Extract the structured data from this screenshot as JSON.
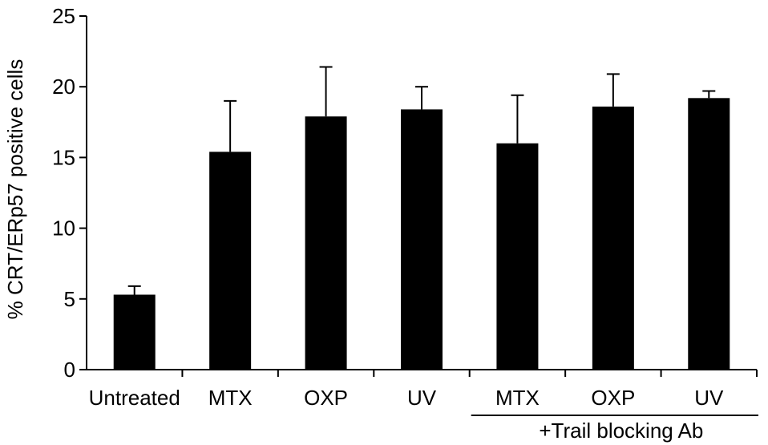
{
  "chart_data": {
    "type": "bar",
    "categories": [
      "Untreated",
      "MTX",
      "OXP",
      "UV",
      "MTX",
      "OXP",
      "UV"
    ],
    "values": [
      5.3,
      15.4,
      17.9,
      18.4,
      16.0,
      18.6,
      19.2
    ],
    "errors": [
      0.6,
      3.6,
      3.5,
      1.6,
      3.4,
      2.3,
      0.5
    ],
    "xlabel": "",
    "ylabel": "% CRT/ERp57 positive cells",
    "ylim": [
      0,
      25
    ],
    "yticks": [
      0,
      5,
      10,
      15,
      20,
      25
    ],
    "ytick_labels": [
      "0",
      "5",
      "10",
      "15",
      "20",
      "25"
    ],
    "group_label": "+Trail blocking Ab",
    "grid": false,
    "bar_color": "#000000"
  }
}
